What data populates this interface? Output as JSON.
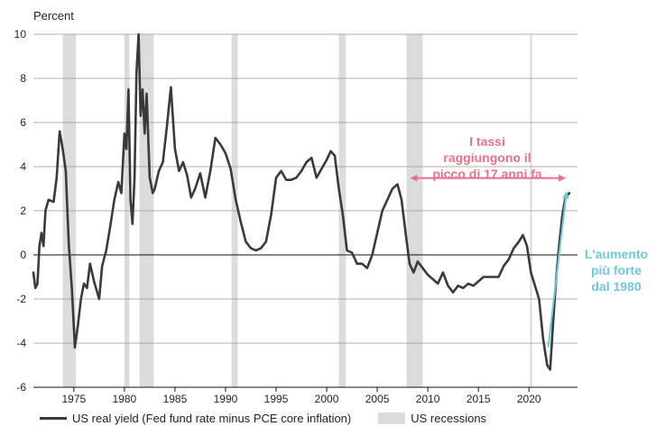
{
  "chart_data": {
    "type": "line",
    "ylabel": "Percent",
    "xlim": [
      1971,
      2024.8
    ],
    "ylim": [
      -6,
      10
    ],
    "yticks": [
      -6,
      -4,
      -2,
      0,
      2,
      4,
      6,
      8,
      10
    ],
    "xticks": [
      1975,
      1980,
      1985,
      1990,
      1995,
      2000,
      2005,
      2010,
      2015,
      2020
    ],
    "grid": true,
    "legend_placement": "bottom",
    "colors": {
      "line": "#3a3a3a",
      "recession": "#dcdcdc",
      "pink": "#e8728a",
      "blue": "#6fc9d6",
      "grid": "#999999"
    },
    "recessions": [
      [
        1973.9,
        1975.2
      ],
      [
        1980.0,
        1980.5
      ],
      [
        1981.5,
        1982.9
      ],
      [
        1990.6,
        1991.2
      ],
      [
        2001.2,
        2001.9
      ],
      [
        2007.9,
        2009.5
      ],
      [
        2020.1,
        2020.3
      ]
    ],
    "series": [
      {
        "name": "US real yield (Fed fund rate minus PCE core inflation)",
        "points": [
          [
            1971.0,
            -0.8
          ],
          [
            1971.2,
            -1.5
          ],
          [
            1971.4,
            -1.3
          ],
          [
            1971.6,
            0.4
          ],
          [
            1971.8,
            1.0
          ],
          [
            1972.0,
            0.4
          ],
          [
            1972.2,
            2.0
          ],
          [
            1972.5,
            2.5
          ],
          [
            1973.0,
            2.4
          ],
          [
            1973.3,
            3.5
          ],
          [
            1973.6,
            5.6
          ],
          [
            1973.9,
            4.8
          ],
          [
            1974.2,
            3.8
          ],
          [
            1974.5,
            0.5
          ],
          [
            1974.8,
            -1.5
          ],
          [
            1975.1,
            -4.2
          ],
          [
            1975.4,
            -3.2
          ],
          [
            1975.7,
            -2.0
          ],
          [
            1976.0,
            -1.3
          ],
          [
            1976.3,
            -1.5
          ],
          [
            1976.6,
            -0.4
          ],
          [
            1977.0,
            -1.2
          ],
          [
            1977.5,
            -2.0
          ],
          [
            1977.8,
            -0.5
          ],
          [
            1978.2,
            0.2
          ],
          [
            1978.6,
            1.3
          ],
          [
            1979.0,
            2.5
          ],
          [
            1979.4,
            3.3
          ],
          [
            1979.7,
            2.8
          ],
          [
            1980.0,
            5.5
          ],
          [
            1980.2,
            4.8
          ],
          [
            1980.4,
            7.5
          ],
          [
            1980.6,
            2.5
          ],
          [
            1980.8,
            1.4
          ],
          [
            1981.0,
            3.5
          ],
          [
            1981.2,
            8.3
          ],
          [
            1981.4,
            10.0
          ],
          [
            1981.6,
            6.3
          ],
          [
            1981.8,
            7.5
          ],
          [
            1982.0,
            5.5
          ],
          [
            1982.2,
            7.3
          ],
          [
            1982.5,
            3.5
          ],
          [
            1982.8,
            2.8
          ],
          [
            1983.0,
            3.0
          ],
          [
            1983.4,
            3.8
          ],
          [
            1983.8,
            4.2
          ],
          [
            1984.2,
            5.8
          ],
          [
            1984.6,
            7.6
          ],
          [
            1985.0,
            4.8
          ],
          [
            1985.4,
            3.8
          ],
          [
            1985.8,
            4.2
          ],
          [
            1986.2,
            3.6
          ],
          [
            1986.6,
            2.6
          ],
          [
            1987.0,
            3.0
          ],
          [
            1987.5,
            3.7
          ],
          [
            1988.0,
            2.6
          ],
          [
            1988.5,
            3.8
          ],
          [
            1989.0,
            5.3
          ],
          [
            1989.5,
            5.0
          ],
          [
            1990.0,
            4.6
          ],
          [
            1990.5,
            3.9
          ],
          [
            1991.0,
            2.5
          ],
          [
            1991.5,
            1.5
          ],
          [
            1992.0,
            0.6
          ],
          [
            1992.5,
            0.3
          ],
          [
            1993.0,
            0.2
          ],
          [
            1993.5,
            0.3
          ],
          [
            1994.0,
            0.6
          ],
          [
            1994.5,
            1.8
          ],
          [
            1995.0,
            3.5
          ],
          [
            1995.5,
            3.8
          ],
          [
            1996.0,
            3.4
          ],
          [
            1996.5,
            3.4
          ],
          [
            1997.0,
            3.5
          ],
          [
            1997.5,
            3.8
          ],
          [
            1998.0,
            4.2
          ],
          [
            1998.5,
            4.4
          ],
          [
            1999.0,
            3.5
          ],
          [
            1999.5,
            3.9
          ],
          [
            2000.0,
            4.3
          ],
          [
            2000.4,
            4.7
          ],
          [
            2000.8,
            4.5
          ],
          [
            2001.2,
            3.0
          ],
          [
            2001.6,
            1.8
          ],
          [
            2002.0,
            0.2
          ],
          [
            2002.5,
            0.1
          ],
          [
            2003.0,
            -0.4
          ],
          [
            2003.5,
            -0.4
          ],
          [
            2004.0,
            -0.6
          ],
          [
            2004.5,
            0.0
          ],
          [
            2005.0,
            1.0
          ],
          [
            2005.5,
            2.0
          ],
          [
            2006.0,
            2.5
          ],
          [
            2006.5,
            3.0
          ],
          [
            2007.0,
            3.2
          ],
          [
            2007.4,
            2.5
          ],
          [
            2007.8,
            1.0
          ],
          [
            2008.2,
            -0.4
          ],
          [
            2008.6,
            -0.8
          ],
          [
            2009.0,
            -0.3
          ],
          [
            2009.5,
            -0.6
          ],
          [
            2010.0,
            -0.9
          ],
          [
            2011.0,
            -1.3
          ],
          [
            2011.5,
            -0.8
          ],
          [
            2012.0,
            -1.4
          ],
          [
            2012.5,
            -1.7
          ],
          [
            2013.0,
            -1.4
          ],
          [
            2013.5,
            -1.5
          ],
          [
            2014.0,
            -1.3
          ],
          [
            2014.5,
            -1.4
          ],
          [
            2015.0,
            -1.2
          ],
          [
            2015.5,
            -1.0
          ],
          [
            2016.0,
            -1.0
          ],
          [
            2016.5,
            -1.0
          ],
          [
            2017.0,
            -1.0
          ],
          [
            2017.5,
            -0.5
          ],
          [
            2018.0,
            -0.2
          ],
          [
            2018.5,
            0.3
          ],
          [
            2019.0,
            0.6
          ],
          [
            2019.4,
            0.9
          ],
          [
            2019.8,
            0.4
          ],
          [
            2020.2,
            -0.8
          ],
          [
            2020.6,
            -1.4
          ],
          [
            2021.0,
            -2.0
          ],
          [
            2021.4,
            -3.8
          ],
          [
            2021.8,
            -5.0
          ],
          [
            2022.1,
            -5.2
          ],
          [
            2022.4,
            -3.0
          ],
          [
            2022.7,
            -1.0
          ],
          [
            2023.0,
            0.5
          ],
          [
            2023.3,
            1.8
          ],
          [
            2023.6,
            2.6
          ],
          [
            2024.0,
            2.8
          ]
        ]
      }
    ],
    "legend": {
      "line_label": "US real yield (Fed fund rate minus PCE core inflation)",
      "recession_label": "US recessions"
    },
    "annotations": {
      "pink_text": [
        "I tassi",
        "raggiungono il",
        "picco di 17 anni fa"
      ],
      "pink_arrow_x": [
        2007.9,
        2024.0
      ],
      "pink_arrow_y": 3.4,
      "blue_text": [
        "L'aumento",
        "più forte",
        "dal 1980"
      ],
      "blue_arrow_from": [
        2021.9,
        -4.2
      ],
      "blue_arrow_to": [
        2023.7,
        2.8
      ]
    }
  }
}
